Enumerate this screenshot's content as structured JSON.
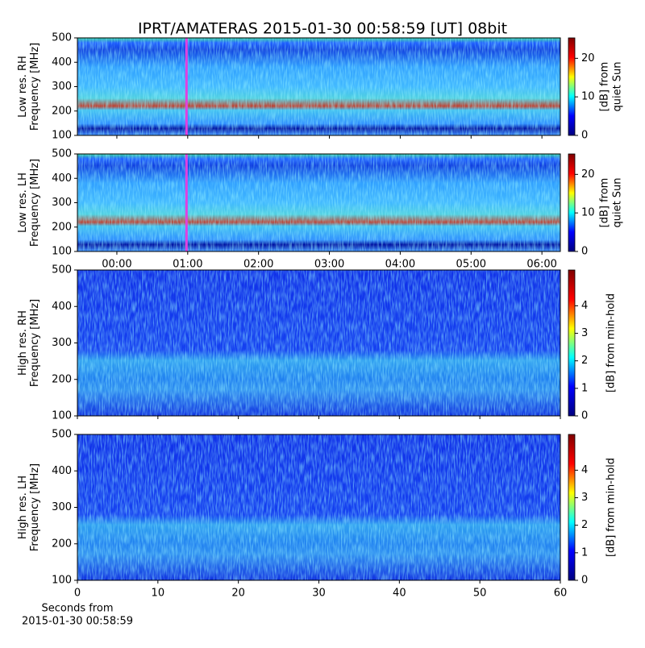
{
  "figure": {
    "title": "IPRT/AMATERAS 2015-01-30 00:58:59 [UT]   08bit"
  },
  "chart_data": [
    {
      "type": "heatmap",
      "ylabel": [
        "Low res. RH",
        "Frequency [MHz]"
      ],
      "ylim": [
        100,
        500
      ],
      "yticks": [
        100,
        200,
        300,
        400,
        500
      ],
      "xlim": [
        -0.557,
        6.26
      ],
      "xticks": [
        0,
        1,
        2,
        3,
        4,
        5,
        6
      ],
      "marker": {
        "x": 0.983,
        "color": "#e040e0"
      },
      "colorbar": {
        "label": [
          "[dB] from",
          "quiet Sun"
        ],
        "lim": [
          0,
          25.3
        ],
        "ticks": [
          0,
          10,
          20
        ],
        "colormap": "jet"
      }
    },
    {
      "type": "heatmap",
      "ylabel": [
        "Low res. LH",
        "Frequency [MHz]"
      ],
      "ylim": [
        100,
        500
      ],
      "yticks": [
        100,
        200,
        300,
        400,
        500
      ],
      "xlim": [
        -0.557,
        6.26
      ],
      "xticks": [
        {
          "value": 0,
          "label": "00:00"
        },
        {
          "value": 1,
          "label": "01:00"
        },
        {
          "value": 2,
          "label": "02:00"
        },
        {
          "value": 3,
          "label": "03:00"
        },
        {
          "value": 4,
          "label": "04:00"
        },
        {
          "value": 5,
          "label": "05:00"
        },
        {
          "value": 6,
          "label": "06:00"
        }
      ],
      "marker": {
        "x": 0.983,
        "color": "#e040e0"
      },
      "colorbar": {
        "label": [
          "[dB] from",
          "quiet Sun"
        ],
        "lim": [
          0,
          25.3
        ],
        "ticks": [
          0,
          10,
          20
        ],
        "colormap": "jet"
      }
    },
    {
      "type": "heatmap",
      "ylabel": [
        "High res. RH",
        "Frequency [MHz]"
      ],
      "ylim": [
        100,
        500
      ],
      "yticks": [
        100,
        200,
        300,
        400,
        500
      ],
      "xlim": [
        0,
        60
      ],
      "xticks": [
        0,
        10,
        20,
        30,
        40,
        50,
        60
      ],
      "colorbar": {
        "label": [
          "[dB] from min-hold"
        ],
        "lim": [
          0,
          5.3
        ],
        "ticks": [
          0,
          1,
          2,
          3,
          4
        ],
        "colormap": "jet"
      }
    },
    {
      "type": "heatmap",
      "ylabel": [
        "High res. LH",
        "Frequency [MHz]"
      ],
      "ylim": [
        100,
        500
      ],
      "yticks": [
        100,
        200,
        300,
        400,
        500
      ],
      "xlim": [
        0,
        60
      ],
      "xticks": [
        0,
        10,
        20,
        30,
        40,
        50,
        60
      ],
      "show_xticklabels": true,
      "xlabel": [
        "Seconds from",
        "2015-01-30 00:58:59"
      ],
      "colorbar": {
        "label": [
          "[dB] from min-hold"
        ],
        "lim": [
          0,
          5.3
        ],
        "ticks": [
          0,
          1,
          2,
          3,
          4
        ],
        "colormap": "jet"
      }
    }
  ]
}
